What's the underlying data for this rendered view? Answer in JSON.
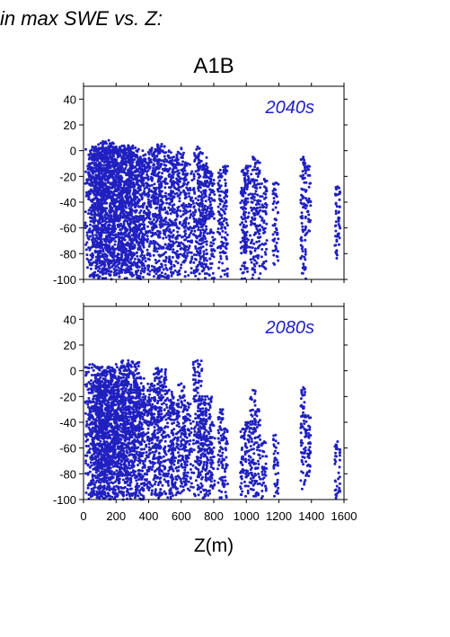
{
  "header_text": "in max SWE vs. Z:",
  "title": "A1B",
  "xlabel": "Z(m)",
  "colors": {
    "points": "#2020c0",
    "axes": "#000000",
    "period_label": "#2020c0"
  },
  "chart_data": [
    {
      "type": "scatter",
      "label": "2040s",
      "xlim": [
        0,
        1600
      ],
      "ylim": [
        -100,
        50
      ],
      "xticks": [
        0,
        200,
        400,
        600,
        800,
        1000,
        1200,
        1400,
        1600
      ],
      "yticks": [
        -100,
        -80,
        -60,
        -40,
        -20,
        0,
        20,
        40
      ],
      "xtick_labels_visible": false,
      "grid": false,
      "columns": [
        {
          "x": 55,
          "ymin": -100,
          "ymax": 3,
          "density": 4
        },
        {
          "x": 75,
          "ymin": -100,
          "ymax": 3,
          "density": 4
        },
        {
          "x": 95,
          "ymin": -100,
          "ymax": 2,
          "density": 4
        },
        {
          "x": 115,
          "ymin": -100,
          "ymax": 3,
          "density": 4
        },
        {
          "x": 135,
          "ymin": -100,
          "ymax": 6,
          "density": 4
        },
        {
          "x": 155,
          "ymin": -100,
          "ymax": 8,
          "density": 4
        },
        {
          "x": 175,
          "ymin": -100,
          "ymax": 3,
          "density": 4
        },
        {
          "x": 200,
          "ymin": -100,
          "ymax": 3,
          "density": 4
        },
        {
          "x": 225,
          "ymin": -100,
          "ymax": 2,
          "density": 4
        },
        {
          "x": 250,
          "ymin": -100,
          "ymax": 3,
          "density": 4
        },
        {
          "x": 275,
          "ymin": -100,
          "ymax": 4,
          "density": 4
        },
        {
          "x": 300,
          "ymin": -100,
          "ymax": 3,
          "density": 4
        },
        {
          "x": 325,
          "ymin": -100,
          "ymax": 0,
          "density": 4
        },
        {
          "x": 350,
          "ymin": -100,
          "ymax": -5,
          "density": 3
        },
        {
          "x": 380,
          "ymin": -100,
          "ymax": -3,
          "density": 3
        },
        {
          "x": 420,
          "ymin": -100,
          "ymax": 2,
          "density": 3
        },
        {
          "x": 455,
          "ymin": -100,
          "ymax": 1,
          "density": 3
        },
        {
          "x": 480,
          "ymin": -100,
          "ymax": 5,
          "density": 3
        },
        {
          "x": 525,
          "ymin": -100,
          "ymax": 0,
          "density": 3
        },
        {
          "x": 555,
          "ymin": -100,
          "ymax": -5,
          "density": 3
        },
        {
          "x": 600,
          "ymin": -100,
          "ymax": 2,
          "density": 3
        },
        {
          "x": 640,
          "ymin": -100,
          "ymax": -10,
          "density": 3
        },
        {
          "x": 700,
          "ymin": -100,
          "ymax": 3,
          "density": 3
        },
        {
          "x": 730,
          "ymin": -100,
          "ymax": -2,
          "density": 3
        },
        {
          "x": 755,
          "ymin": -100,
          "ymax": -10,
          "density": 3
        },
        {
          "x": 790,
          "ymin": -100,
          "ymax": -18,
          "density": 2
        },
        {
          "x": 840,
          "ymin": -100,
          "ymax": -15,
          "density": 2
        },
        {
          "x": 870,
          "ymin": -100,
          "ymax": -12,
          "density": 2
        },
        {
          "x": 980,
          "ymin": -100,
          "ymax": -15,
          "density": 2
        },
        {
          "x": 1000,
          "ymin": -100,
          "ymax": -12,
          "density": 2
        },
        {
          "x": 1040,
          "ymin": -100,
          "ymax": -5,
          "density": 2
        },
        {
          "x": 1070,
          "ymin": -100,
          "ymax": -8,
          "density": 2
        },
        {
          "x": 1110,
          "ymin": -95,
          "ymax": -22,
          "density": 2
        },
        {
          "x": 1180,
          "ymin": -90,
          "ymax": -25,
          "density": 2
        },
        {
          "x": 1350,
          "ymin": -100,
          "ymax": -5,
          "density": 2
        },
        {
          "x": 1380,
          "ymin": -65,
          "ymax": -12,
          "density": 2
        },
        {
          "x": 1560,
          "ymin": -92,
          "ymax": -28,
          "density": 2
        }
      ]
    },
    {
      "type": "scatter",
      "label": "2080s",
      "xlim": [
        0,
        1600
      ],
      "ylim": [
        -100,
        50
      ],
      "xticks": [
        0,
        200,
        400,
        600,
        800,
        1000,
        1200,
        1400,
        1600
      ],
      "yticks": [
        -100,
        -80,
        -60,
        -40,
        -20,
        0,
        20,
        40
      ],
      "xtick_labels_visible": true,
      "grid": false,
      "columns": [
        {
          "x": 55,
          "ymin": -100,
          "ymax": 5,
          "density": 4
        },
        {
          "x": 75,
          "ymin": -100,
          "ymax": -5,
          "density": 4
        },
        {
          "x": 95,
          "ymin": -100,
          "ymax": -10,
          "density": 4
        },
        {
          "x": 115,
          "ymin": -100,
          "ymax": 3,
          "density": 4
        },
        {
          "x": 135,
          "ymin": -100,
          "ymax": 0,
          "density": 4
        },
        {
          "x": 155,
          "ymin": -100,
          "ymax": 3,
          "density": 4
        },
        {
          "x": 175,
          "ymin": -100,
          "ymax": -5,
          "density": 4
        },
        {
          "x": 200,
          "ymin": -100,
          "ymax": 5,
          "density": 4
        },
        {
          "x": 225,
          "ymin": -100,
          "ymax": 0,
          "density": 4
        },
        {
          "x": 250,
          "ymin": -100,
          "ymax": -8,
          "density": 4
        },
        {
          "x": 275,
          "ymin": -100,
          "ymax": 8,
          "density": 4
        },
        {
          "x": 300,
          "ymin": -100,
          "ymax": 7,
          "density": 4
        },
        {
          "x": 325,
          "ymin": -100,
          "ymax": -15,
          "density": 3
        },
        {
          "x": 350,
          "ymin": -100,
          "ymax": -5,
          "density": 3
        },
        {
          "x": 380,
          "ymin": -100,
          "ymax": -20,
          "density": 3
        },
        {
          "x": 420,
          "ymin": -100,
          "ymax": -10,
          "density": 3
        },
        {
          "x": 455,
          "ymin": -100,
          "ymax": 2,
          "density": 3
        },
        {
          "x": 480,
          "ymin": -100,
          "ymax": 1,
          "density": 3
        },
        {
          "x": 525,
          "ymin": -100,
          "ymax": -15,
          "density": 3
        },
        {
          "x": 555,
          "ymin": -100,
          "ymax": -25,
          "density": 3
        },
        {
          "x": 600,
          "ymin": -100,
          "ymax": -10,
          "density": 3
        },
        {
          "x": 640,
          "ymin": -100,
          "ymax": -25,
          "density": 3
        },
        {
          "x": 700,
          "ymin": -100,
          "ymax": 8,
          "density": 3
        },
        {
          "x": 730,
          "ymin": -100,
          "ymax": -20,
          "density": 3
        },
        {
          "x": 760,
          "ymin": -100,
          "ymax": -20,
          "density": 3
        },
        {
          "x": 790,
          "ymin": -100,
          "ymax": -40,
          "density": 2
        },
        {
          "x": 840,
          "ymin": -100,
          "ymax": -30,
          "density": 2
        },
        {
          "x": 870,
          "ymin": -100,
          "ymax": -45,
          "density": 2
        },
        {
          "x": 980,
          "ymin": -100,
          "ymax": -45,
          "density": 2
        },
        {
          "x": 1010,
          "ymin": -100,
          "ymax": -40,
          "density": 2
        },
        {
          "x": 1040,
          "ymin": -100,
          "ymax": -15,
          "density": 2
        },
        {
          "x": 1070,
          "ymin": -100,
          "ymax": -30,
          "density": 2
        },
        {
          "x": 1110,
          "ymin": -100,
          "ymax": -55,
          "density": 2
        },
        {
          "x": 1180,
          "ymin": -100,
          "ymax": -50,
          "density": 2
        },
        {
          "x": 1350,
          "ymin": -92,
          "ymax": -13,
          "density": 2
        },
        {
          "x": 1380,
          "ymin": -85,
          "ymax": -35,
          "density": 2
        },
        {
          "x": 1560,
          "ymin": -100,
          "ymax": -55,
          "density": 2
        }
      ]
    }
  ]
}
